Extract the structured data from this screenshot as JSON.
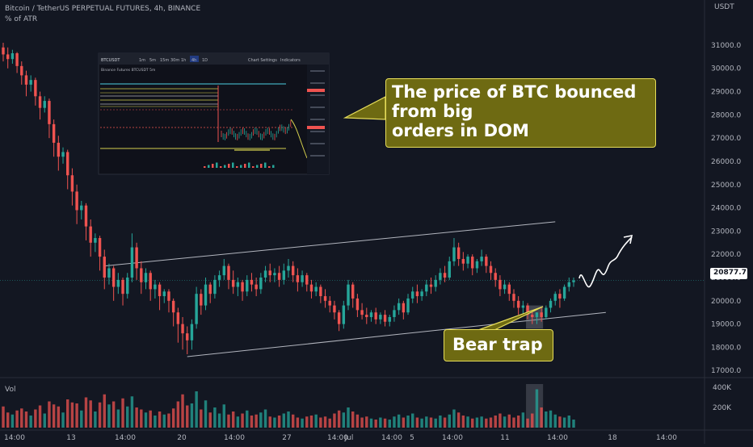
{
  "header": {
    "symbol": "Bitcoin / TetherUS PERPETUAL FUTURES, 4h, BINANCE",
    "indicator": "% of ATR",
    "currency": "USDT",
    "volume_label": "Vol"
  },
  "price_axis": {
    "ticks": [
      "31000.0",
      "30000.0",
      "29000.0",
      "28000.0",
      "27000.0",
      "26000.0",
      "25000.0",
      "24000.0",
      "23000.0",
      "22000.0",
      "21000.0",
      "20000.0",
      "19000.0",
      "18000.0",
      "17000.0"
    ],
    "current_price": "20877.7"
  },
  "volume_axis": {
    "ticks": [
      "400K",
      "200K"
    ]
  },
  "time_axis": {
    "ticks": [
      "14:00",
      "13",
      "14:00",
      "20",
      "14:00",
      "27",
      "14:00",
      "Jul",
      "14:00",
      "5",
      "14:00",
      "11",
      "14:00",
      "18",
      "14:00"
    ]
  },
  "callouts": {
    "main": [
      "The price of BTC bounced",
      "from big",
      "orders in DOM"
    ],
    "trap": "Bear trap"
  },
  "inset": {
    "ticker": "BTCUSDT",
    "timeframes": [
      "1m",
      "5m",
      "15m",
      "30m",
      "1h",
      "4h",
      "1D"
    ],
    "menu": [
      "Chart Settings",
      "Indicators"
    ],
    "title": "Binance Futures BTCUSDT 5m"
  },
  "colors": {
    "background": "#131722",
    "up": "#26a69a",
    "down": "#ef5350",
    "callout_fill": "#6e6a12",
    "callout_border": "#e6dd5a",
    "channel": "#b2b5be"
  },
  "chart_data": {
    "type": "candlestick",
    "title": "Bitcoin / TetherUS PERPETUAL FUTURES, 4h, BINANCE",
    "ylim": [
      16800,
      31900
    ],
    "volume_ylim": [
      0,
      480000
    ],
    "ohlc": [
      {
        "o": 30900,
        "h": 31100,
        "c": 30600,
        "l": 30300
      },
      {
        "o": 30600,
        "h": 30900,
        "c": 30400,
        "l": 30000
      },
      {
        "o": 30400,
        "h": 30800,
        "c": 30650,
        "l": 30200
      },
      {
        "o": 30650,
        "h": 30700,
        "c": 30100,
        "l": 29800
      },
      {
        "o": 30100,
        "h": 30300,
        "c": 29700,
        "l": 29300
      },
      {
        "o": 29700,
        "h": 29900,
        "c": 29300,
        "l": 28800
      },
      {
        "o": 29300,
        "h": 29700,
        "c": 29500,
        "l": 29000
      },
      {
        "o": 29500,
        "h": 29600,
        "c": 28800,
        "l": 28400
      },
      {
        "o": 28800,
        "h": 29000,
        "c": 28300,
        "l": 27800
      },
      {
        "o": 28300,
        "h": 28800,
        "c": 28600,
        "l": 28100
      },
      {
        "o": 28600,
        "h": 28700,
        "c": 27600,
        "l": 27000
      },
      {
        "o": 27600,
        "h": 27800,
        "c": 26800,
        "l": 26200
      },
      {
        "o": 26800,
        "h": 27100,
        "c": 26200,
        "l": 25600
      },
      {
        "o": 26200,
        "h": 26600,
        "c": 26400,
        "l": 25900
      },
      {
        "o": 26400,
        "h": 26500,
        "c": 25400,
        "l": 24800
      },
      {
        "o": 25400,
        "h": 25700,
        "c": 24700,
        "l": 24100
      },
      {
        "o": 24700,
        "h": 25000,
        "c": 23900,
        "l": 23300
      },
      {
        "o": 23900,
        "h": 24300,
        "c": 24100,
        "l": 23500
      },
      {
        "o": 24100,
        "h": 24200,
        "c": 23200,
        "l": 22600
      },
      {
        "o": 23200,
        "h": 23500,
        "c": 22500,
        "l": 21900
      },
      {
        "o": 22500,
        "h": 22900,
        "c": 22700,
        "l": 22100
      },
      {
        "o": 22700,
        "h": 22800,
        "c": 21900,
        "l": 21300
      },
      {
        "o": 21900,
        "h": 22200,
        "c": 21000,
        "l": 20500
      },
      {
        "o": 21000,
        "h": 21600,
        "c": 21400,
        "l": 20700
      },
      {
        "o": 21400,
        "h": 21500,
        "c": 20600,
        "l": 20000
      },
      {
        "o": 20600,
        "h": 21200,
        "c": 20900,
        "l": 20300
      },
      {
        "o": 20900,
        "h": 21000,
        "c": 20300,
        "l": 19800
      },
      {
        "o": 20300,
        "h": 21200,
        "c": 21000,
        "l": 20100
      },
      {
        "o": 21000,
        "h": 22900,
        "c": 22300,
        "l": 20800
      },
      {
        "o": 22300,
        "h": 22500,
        "c": 21400,
        "l": 20900
      },
      {
        "o": 21400,
        "h": 21700,
        "c": 20800,
        "l": 20300
      },
      {
        "o": 20800,
        "h": 21400,
        "c": 21200,
        "l": 20500
      },
      {
        "o": 21200,
        "h": 21300,
        "c": 20500,
        "l": 20000
      },
      {
        "o": 20500,
        "h": 20900,
        "c": 20700,
        "l": 20100
      },
      {
        "o": 20700,
        "h": 20800,
        "c": 20200,
        "l": 19600
      },
      {
        "o": 20200,
        "h": 20500,
        "c": 20400,
        "l": 19900
      },
      {
        "o": 20400,
        "h": 20500,
        "c": 20000,
        "l": 19500
      },
      {
        "o": 20000,
        "h": 20100,
        "c": 19500,
        "l": 18900
      },
      {
        "o": 19500,
        "h": 19700,
        "c": 19000,
        "l": 18200
      },
      {
        "o": 19000,
        "h": 19300,
        "c": 18600,
        "l": 17900
      },
      {
        "o": 18600,
        "h": 18900,
        "c": 18300,
        "l": 17700
      },
      {
        "o": 18300,
        "h": 19200,
        "c": 19000,
        "l": 17900
      },
      {
        "o": 19000,
        "h": 20600,
        "c": 20300,
        "l": 18800
      },
      {
        "o": 20300,
        "h": 20500,
        "c": 19800,
        "l": 19400
      },
      {
        "o": 19800,
        "h": 21000,
        "c": 20700,
        "l": 19600
      },
      {
        "o": 20700,
        "h": 20800,
        "c": 20300,
        "l": 19900
      },
      {
        "o": 20300,
        "h": 21100,
        "c": 20900,
        "l": 20100
      },
      {
        "o": 20900,
        "h": 21300,
        "c": 21100,
        "l": 20600
      },
      {
        "o": 21100,
        "h": 21800,
        "c": 21500,
        "l": 20900
      },
      {
        "o": 21500,
        "h": 21600,
        "c": 20900,
        "l": 20500
      },
      {
        "o": 20900,
        "h": 21300,
        "c": 20600,
        "l": 20300
      },
      {
        "o": 20600,
        "h": 21000,
        "c": 20800,
        "l": 20200
      },
      {
        "o": 20800,
        "h": 20900,
        "c": 20400,
        "l": 20000
      },
      {
        "o": 20400,
        "h": 21100,
        "c": 20900,
        "l": 20200
      },
      {
        "o": 20900,
        "h": 21200,
        "c": 20700,
        "l": 20400
      },
      {
        "o": 20700,
        "h": 21000,
        "c": 20500,
        "l": 20200
      },
      {
        "o": 20500,
        "h": 21200,
        "c": 21000,
        "l": 20300
      },
      {
        "o": 21000,
        "h": 21500,
        "c": 21300,
        "l": 20800
      },
      {
        "o": 21300,
        "h": 21600,
        "c": 21100,
        "l": 20800
      },
      {
        "o": 21100,
        "h": 21400,
        "c": 21200,
        "l": 20800
      },
      {
        "o": 21200,
        "h": 21500,
        "c": 20900,
        "l": 20600
      },
      {
        "o": 20900,
        "h": 21600,
        "c": 21300,
        "l": 20700
      },
      {
        "o": 21300,
        "h": 21800,
        "c": 21500,
        "l": 21000
      },
      {
        "o": 21500,
        "h": 21700,
        "c": 21100,
        "l": 20800
      },
      {
        "o": 21100,
        "h": 21400,
        "c": 20800,
        "l": 20400
      },
      {
        "o": 20800,
        "h": 21300,
        "c": 21100,
        "l": 20600
      },
      {
        "o": 21100,
        "h": 21200,
        "c": 20700,
        "l": 20400
      },
      {
        "o": 20700,
        "h": 20900,
        "c": 20400,
        "l": 20100
      },
      {
        "o": 20400,
        "h": 20800,
        "c": 20600,
        "l": 20200
      },
      {
        "o": 20600,
        "h": 20700,
        "c": 20200,
        "l": 19900
      },
      {
        "o": 20200,
        "h": 20500,
        "c": 20000,
        "l": 19700
      },
      {
        "o": 20000,
        "h": 20200,
        "c": 19800,
        "l": 19500
      },
      {
        "o": 19800,
        "h": 20000,
        "c": 19500,
        "l": 19200
      },
      {
        "o": 19500,
        "h": 19600,
        "c": 19000,
        "l": 18700
      },
      {
        "o": 19000,
        "h": 20000,
        "c": 19800,
        "l": 18800
      },
      {
        "o": 19800,
        "h": 20900,
        "c": 20700,
        "l": 19600
      },
      {
        "o": 20700,
        "h": 20800,
        "c": 20100,
        "l": 19700
      },
      {
        "o": 20100,
        "h": 20300,
        "c": 19600,
        "l": 19300
      },
      {
        "o": 19600,
        "h": 19900,
        "c": 19400,
        "l": 19200
      },
      {
        "o": 19400,
        "h": 19700,
        "c": 19300,
        "l": 19000
      },
      {
        "o": 19300,
        "h": 19600,
        "c": 19500,
        "l": 19100
      },
      {
        "o": 19500,
        "h": 19700,
        "c": 19200,
        "l": 19000
      },
      {
        "o": 19200,
        "h": 19500,
        "c": 19400,
        "l": 19000
      },
      {
        "o": 19400,
        "h": 19600,
        "c": 19100,
        "l": 18900
      },
      {
        "o": 19100,
        "h": 19400,
        "c": 19300,
        "l": 18900
      },
      {
        "o": 19300,
        "h": 19800,
        "c": 19600,
        "l": 19100
      },
      {
        "o": 19600,
        "h": 20100,
        "c": 19900,
        "l": 19400
      },
      {
        "o": 19900,
        "h": 20000,
        "c": 19500,
        "l": 19200
      },
      {
        "o": 19500,
        "h": 20300,
        "c": 20100,
        "l": 19400
      },
      {
        "o": 20100,
        "h": 20600,
        "c": 20400,
        "l": 19900
      },
      {
        "o": 20400,
        "h": 20700,
        "c": 20200,
        "l": 19900
      },
      {
        "o": 20200,
        "h": 20500,
        "c": 20400,
        "l": 20000
      },
      {
        "o": 20400,
        "h": 20900,
        "c": 20700,
        "l": 20200
      },
      {
        "o": 20700,
        "h": 21000,
        "c": 20600,
        "l": 20300
      },
      {
        "o": 20600,
        "h": 21100,
        "c": 20900,
        "l": 20400
      },
      {
        "o": 20900,
        "h": 21400,
        "c": 21200,
        "l": 20700
      },
      {
        "o": 21200,
        "h": 21500,
        "c": 21000,
        "l": 20800
      },
      {
        "o": 21000,
        "h": 21900,
        "c": 21700,
        "l": 20900
      },
      {
        "o": 21700,
        "h": 22700,
        "c": 22300,
        "l": 21500
      },
      {
        "o": 22300,
        "h": 22500,
        "c": 21800,
        "l": 21500
      },
      {
        "o": 21800,
        "h": 22100,
        "c": 21600,
        "l": 21300
      },
      {
        "o": 21600,
        "h": 22000,
        "c": 21900,
        "l": 21400
      },
      {
        "o": 21900,
        "h": 22000,
        "c": 21400,
        "l": 21100
      },
      {
        "o": 21400,
        "h": 21800,
        "c": 21700,
        "l": 21200
      },
      {
        "o": 21700,
        "h": 22200,
        "c": 21900,
        "l": 21500
      },
      {
        "o": 21900,
        "h": 22000,
        "c": 21500,
        "l": 21200
      },
      {
        "o": 21500,
        "h": 21700,
        "c": 21200,
        "l": 20900
      },
      {
        "o": 21200,
        "h": 21400,
        "c": 20900,
        "l": 20600
      },
      {
        "o": 20900,
        "h": 21100,
        "c": 20500,
        "l": 20200
      },
      {
        "o": 20500,
        "h": 20900,
        "c": 20700,
        "l": 20300
      },
      {
        "o": 20700,
        "h": 20800,
        "c": 20300,
        "l": 20000
      },
      {
        "o": 20300,
        "h": 20500,
        "c": 20000,
        "l": 19700
      },
      {
        "o": 20000,
        "h": 20200,
        "c": 19700,
        "l": 19400
      },
      {
        "o": 19700,
        "h": 20000,
        "c": 19800,
        "l": 19400
      },
      {
        "o": 19800,
        "h": 19900,
        "c": 19400,
        "l": 19200
      },
      {
        "o": 19400,
        "h": 19600,
        "c": 19300,
        "l": 19000
      },
      {
        "o": 19300,
        "h": 19500,
        "c": 19500,
        "l": 19000
      },
      {
        "o": 19500,
        "h": 19700,
        "c": 19300,
        "l": 19100
      },
      {
        "o": 19300,
        "h": 19800,
        "c": 19700,
        "l": 19200
      },
      {
        "o": 19700,
        "h": 20100,
        "c": 20000,
        "l": 19500
      },
      {
        "o": 20000,
        "h": 20400,
        "c": 20300,
        "l": 19800
      },
      {
        "o": 20300,
        "h": 20500,
        "c": 20100,
        "l": 19700
      },
      {
        "o": 20100,
        "h": 20700,
        "c": 20600,
        "l": 20000
      },
      {
        "o": 20600,
        "h": 21000,
        "c": 20800,
        "l": 20400
      },
      {
        "o": 20800,
        "h": 21000,
        "c": 20880,
        "l": 20600
      }
    ],
    "volume": [
      210000,
      150000,
      130000,
      170000,
      190000,
      160000,
      120000,
      180000,
      220000,
      140000,
      260000,
      230000,
      210000,
      150000,
      280000,
      250000,
      240000,
      170000,
      300000,
      270000,
      160000,
      250000,
      330000,
      230000,
      260000,
      180000,
      290000,
      210000,
      310000,
      200000,
      180000,
      150000,
      170000,
      120000,
      160000,
      130000,
      140000,
      190000,
      260000,
      330000,
      220000,
      240000,
      360000,
      180000,
      270000,
      150000,
      200000,
      140000,
      230000,
      130000,
      160000,
      110000,
      140000,
      170000,
      120000,
      130000,
      150000,
      180000,
      110000,
      100000,
      120000,
      140000,
      160000,
      130000,
      100000,
      90000,
      110000,
      120000,
      130000,
      100000,
      110000,
      90000,
      140000,
      170000,
      150000,
      200000,
      160000,
      130000,
      100000,
      110000,
      90000,
      80000,
      100000,
      90000,
      80000,
      110000,
      130000,
      100000,
      120000,
      140000,
      100000,
      90000,
      110000,
      100000,
      90000,
      120000,
      100000,
      130000,
      180000,
      150000,
      120000,
      110000,
      90000,
      100000,
      110000,
      90000,
      100000,
      120000,
      140000,
      110000,
      130000,
      100000,
      120000,
      150000,
      90000,
      140000,
      380000,
      200000,
      160000,
      170000,
      130000,
      110000,
      100000,
      120000,
      80000
    ],
    "channel": {
      "upper": [
        [
          22,
          21500
        ],
        [
          120,
          23400
        ]
      ],
      "lower": [
        [
          40,
          17600
        ],
        [
          131,
          19500
        ]
      ]
    },
    "highlight": {
      "label": "Bear trap",
      "from": 114,
      "to": 117,
      "low": 18800,
      "high": 19800
    }
  }
}
